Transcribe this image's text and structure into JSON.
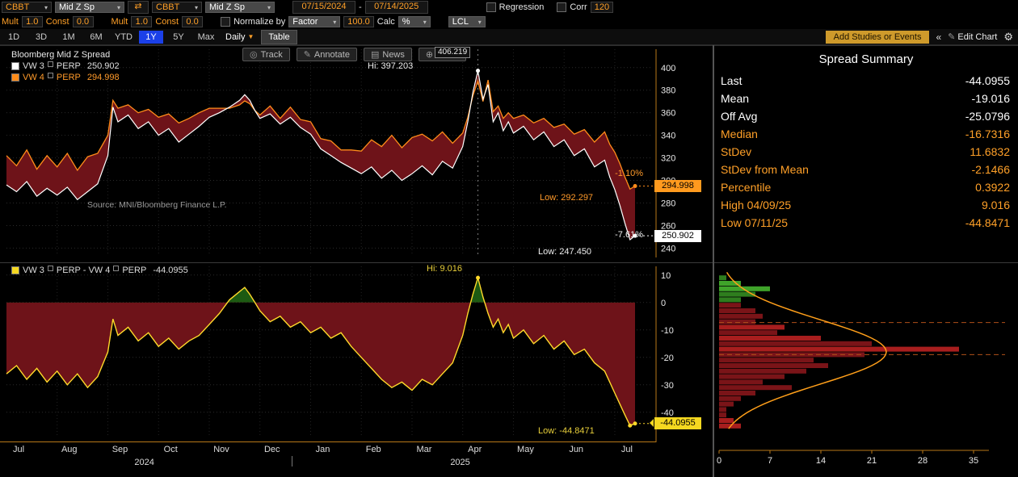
{
  "colors": {
    "amber": "#ffa028",
    "white_series": "#ffffff",
    "orange_series": "#ff8c1a",
    "yellow_series": "#ffd92a",
    "maroon_fill": "#6e1319",
    "green_fill": "#1c5a12",
    "blue_selected": "#1b40e8",
    "hist_red": "#7a1418",
    "hist_red_bright": "#a81e1e",
    "hist_green": "#2e7d1e",
    "hist_green_bright": "#3fa32a",
    "curve": "#ff9f1a",
    "axis": "#b87818",
    "grid": "#2a2a2a"
  },
  "toolbar": {
    "row1": {
      "source1": "CBBT",
      "field1": "Mid Z Sp",
      "swap_icon": "⇄",
      "source2": "CBBT",
      "field2": "Mid Z Sp",
      "date_start": "07/15/2024",
      "date_sep": "-",
      "date_end": "07/14/2025",
      "regression_label": "Regression",
      "corr_label": "Corr",
      "corr_value": "120"
    },
    "row2": {
      "mult1_label": "Mult",
      "mult1": "1.0",
      "const1_label": "Const",
      "const1": "0.0",
      "mult2_label": "Mult",
      "mult2": "1.0",
      "const2_label": "Const",
      "const2": "0.0",
      "normalize_label": "Normalize by",
      "factor": "Factor",
      "factor_value": "100.0",
      "calc_label": "Calc",
      "calc_unit": "%",
      "lcl": "LCL"
    },
    "row3": {
      "ranges": [
        "1D",
        "3D",
        "1M",
        "6M",
        "YTD",
        "1Y",
        "5Y",
        "Max"
      ],
      "selected_range": "1Y",
      "period": "Daily",
      "table_label": "Table",
      "add_studies": "Add Studies or Events",
      "collapse_icon": "«",
      "edit_chart": "Edit Chart",
      "gear_icon": "⚙"
    }
  },
  "chart_toolbar": [
    {
      "glyph": "◎",
      "label": "Track"
    },
    {
      "glyph": "✎",
      "label": "Annotate"
    },
    {
      "glyph": "▤",
      "label": "News"
    },
    {
      "glyph": "⊕",
      "label": "Zoom"
    }
  ],
  "top_chart": {
    "title": "Bloomberg Mid Z Spread",
    "legend": [
      {
        "name": "VW 3",
        "suffix": "PERP",
        "value": "250.902"
      },
      {
        "name": "VW 4",
        "suffix": "PERP",
        "value": "294.998"
      }
    ],
    "annotations": {
      "hi": "Hi: 397.203",
      "tooltip": "406.219",
      "low_orange": "Low: 292.297",
      "low_white": "Low: 247.450",
      "pct_orange": "-1.10%",
      "pct_white": "-7.61%",
      "source": "Source: MNI/Bloomberg Finance L.P."
    },
    "price_labels": {
      "orange": "294.998",
      "white": "250.902"
    }
  },
  "bottom_chart": {
    "legend": {
      "p1": "VW 3",
      "p2": "PERP - VW 4",
      "p3": "PERP",
      "value": "-44.0955"
    },
    "annotations": {
      "hi": "Hi: 9.016",
      "low": "Low: -44.8471"
    },
    "price_label": "-44.0955"
  },
  "x_axis": {
    "months": [
      "Jul",
      "Aug",
      "Sep",
      "Oct",
      "Nov",
      "Dec",
      "Jan",
      "Feb",
      "Mar",
      "Apr",
      "May",
      "Jun",
      "Jul"
    ],
    "years": [
      {
        "label": "2024",
        "month": 2.72
      },
      {
        "label": "2025",
        "month": 8.95
      }
    ]
  },
  "summary": {
    "title": "Spread Summary",
    "rows": [
      {
        "label": "Last",
        "value": "-44.0955",
        "color": "white"
      },
      {
        "label": "Mean",
        "value": "-19.016",
        "color": "white"
      },
      {
        "label": "Off Avg",
        "value": "-25.0796",
        "color": "white"
      },
      {
        "label": "Median",
        "value": "-16.7316",
        "color": "amber"
      },
      {
        "label": "StDev",
        "value": "11.6832",
        "color": "amber"
      },
      {
        "label": "StDev from Mean",
        "value": "-2.1466",
        "color": "amber"
      },
      {
        "label": "Percentile",
        "value": "0.3922",
        "color": "amber"
      },
      {
        "label": "High 04/09/25",
        "value": "9.016",
        "color": "amber"
      },
      {
        "label": "Low 07/11/25",
        "value": "-44.8471",
        "color": "amber"
      }
    ]
  },
  "chart_data": [
    {
      "type": "line",
      "title": "Bloomberg Mid Z Spread",
      "x_unit": "months from Jul 2024",
      "x_domain": [
        0,
        12.75
      ],
      "ylim": [
        236,
        412
      ],
      "yticks": [
        400,
        380,
        360,
        340,
        320,
        300,
        280,
        260,
        240
      ],
      "x": [
        0,
        0.2,
        0.4,
        0.6,
        0.8,
        1,
        1.2,
        1.4,
        1.6,
        1.8,
        2,
        2.1,
        2.2,
        2.4,
        2.6,
        2.8,
        3,
        3.2,
        3.4,
        3.6,
        3.8,
        4,
        4.2,
        4.4,
        4.6,
        4.7,
        4.8,
        4.9,
        5,
        5.2,
        5.4,
        5.6,
        5.8,
        6,
        6.2,
        6.4,
        6.6,
        6.8,
        7,
        7.2,
        7.4,
        7.6,
        7.8,
        8,
        8.2,
        8.4,
        8.6,
        8.8,
        9,
        9.1,
        9.2,
        9.3,
        9.4,
        9.5,
        9.6,
        9.7,
        9.8,
        9.9,
        10,
        10.2,
        10.4,
        10.6,
        10.8,
        11,
        11.2,
        11.4,
        11.6,
        11.8,
        11.9,
        12,
        12.1,
        12.2,
        12.3,
        12.4
      ],
      "series": [
        {
          "name": "VW 3 PERP",
          "color_key": "white_series",
          "last": 250.902,
          "hi": 397.203,
          "hi_x": 9.3,
          "low": 247.45,
          "low_x": 12.3,
          "values": [
            296,
            290,
            299,
            286,
            293,
            287,
            294,
            283,
            290,
            297,
            322,
            365,
            352,
            358,
            346,
            352,
            340,
            346,
            334,
            341,
            348,
            356,
            360,
            365,
            371,
            376,
            371,
            362,
            355,
            359,
            350,
            356,
            347,
            341,
            328,
            322,
            316,
            311,
            306,
            312,
            302,
            309,
            300,
            306,
            313,
            305,
            317,
            311,
            330,
            352,
            378,
            397.203,
            372,
            385,
            352,
            360,
            344,
            352,
            342,
            348,
            336,
            343,
            330,
            336,
            322,
            328,
            312,
            318,
            303,
            292,
            278,
            262,
            247.45,
            250.902
          ]
        },
        {
          "name": "VW 4 PERP",
          "color_key": "orange_series",
          "last": 294.998,
          "hi": 406.219,
          "low": 292.297,
          "values_rule": "series0_minus_spread"
        }
      ],
      "fill_between_key": "maroon_fill"
    },
    {
      "type": "area",
      "name": "VW 3 PERP - VW 4 PERP",
      "ylim": [
        -48,
        12
      ],
      "yticks": [
        10,
        0,
        -10,
        -20,
        -30,
        -40
      ],
      "last": -44.0955,
      "hi": {
        "x": 9.3,
        "v": 9.016
      },
      "low": {
        "x": 12.3,
        "v": -44.8471
      },
      "values": [
        -26,
        -23,
        -28,
        -24,
        -29,
        -25,
        -30,
        -26,
        -31,
        -27,
        -18,
        -6,
        -12,
        -9,
        -14,
        -11,
        -16,
        -13,
        -17,
        -14,
        -12,
        -8,
        -4,
        1,
        4,
        5.5,
        3,
        0,
        -3,
        -7,
        -5,
        -9,
        -7,
        -11,
        -9,
        -13,
        -11,
        -16,
        -20,
        -24,
        -28,
        -31,
        -29,
        -32,
        -28,
        -30,
        -26,
        -22,
        -12,
        -4,
        3,
        9.016,
        2,
        -4,
        -9,
        -6,
        -11,
        -8,
        -13,
        -10,
        -15,
        -12,
        -17,
        -14,
        -19,
        -17,
        -22,
        -25,
        -29,
        -33,
        -37,
        -41,
        -44.8471,
        -44.0955
      ]
    },
    {
      "type": "bar",
      "orientation": "horizontal",
      "xticks": [
        0,
        7,
        14,
        21,
        28,
        35
      ],
      "curve": {
        "mean": -18,
        "sigma": 11.7,
        "peak": 23
      },
      "dashed_levels": [
        -7.3,
        -19
      ],
      "bins": [
        {
          "v": 9,
          "n": 1,
          "c": "hist_green"
        },
        {
          "v": 7,
          "n": 3,
          "c": "hist_green_bright"
        },
        {
          "v": 5,
          "n": 7,
          "c": "hist_green_bright"
        },
        {
          "v": 3,
          "n": 5,
          "c": "hist_green"
        },
        {
          "v": 1,
          "n": 3,
          "c": "hist_green"
        },
        {
          "v": -1,
          "n": 3,
          "c": "hist_red"
        },
        {
          "v": -3,
          "n": 5,
          "c": "hist_red"
        },
        {
          "v": -5,
          "n": 6,
          "c": "hist_red"
        },
        {
          "v": -7,
          "n": 5,
          "c": "hist_red"
        },
        {
          "v": -9,
          "n": 9,
          "c": "hist_red_bright"
        },
        {
          "v": -11,
          "n": 8,
          "c": "hist_red"
        },
        {
          "v": -13,
          "n": 14,
          "c": "hist_red_bright"
        },
        {
          "v": -15,
          "n": 21,
          "c": "hist_red"
        },
        {
          "v": -17,
          "n": 33,
          "c": "hist_red_bright"
        },
        {
          "v": -19,
          "n": 20,
          "c": "hist_red"
        },
        {
          "v": -21,
          "n": 13,
          "c": "hist_red"
        },
        {
          "v": -23,
          "n": 15,
          "c": "hist_red"
        },
        {
          "v": -25,
          "n": 12,
          "c": "hist_red"
        },
        {
          "v": -27,
          "n": 9,
          "c": "hist_red"
        },
        {
          "v": -29,
          "n": 6,
          "c": "hist_red"
        },
        {
          "v": -31,
          "n": 10,
          "c": "hist_red"
        },
        {
          "v": -33,
          "n": 5,
          "c": "hist_red"
        },
        {
          "v": -35,
          "n": 3,
          "c": "hist_red"
        },
        {
          "v": -37,
          "n": 2,
          "c": "hist_red"
        },
        {
          "v": -39,
          "n": 1,
          "c": "hist_red"
        },
        {
          "v": -41,
          "n": 1,
          "c": "hist_red"
        },
        {
          "v": -43,
          "n": 2,
          "c": "hist_red_bright"
        },
        {
          "v": -45,
          "n": 3,
          "c": "hist_red_bright"
        }
      ]
    }
  ]
}
